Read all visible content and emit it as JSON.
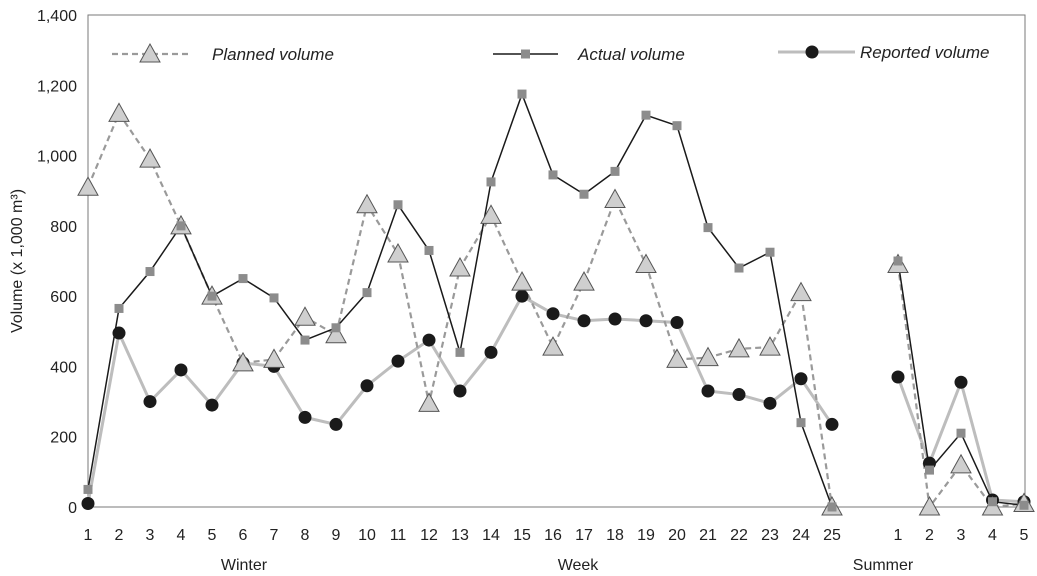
{
  "chart_data": {
    "type": "line",
    "ylabel": "Volume (x 1,000 m³)",
    "ylim": [
      0,
      1400
    ],
    "yticks": [
      "0",
      "200",
      "400",
      "600",
      "800",
      "1,000",
      "1,200",
      "1,400"
    ],
    "grid": false,
    "legend_position": "top",
    "groups": [
      {
        "name": "Winter/Week",
        "label_left": "Winter",
        "label_center": "Week",
        "x": [
          1,
          2,
          3,
          4,
          5,
          6,
          7,
          8,
          9,
          10,
          11,
          12,
          13,
          14,
          15,
          16,
          17,
          18,
          19,
          20,
          21,
          22,
          23,
          24,
          25
        ],
        "x_labels": [
          "1",
          "2",
          "3",
          "4",
          "5",
          "6",
          "7",
          "8",
          "9",
          "10",
          "11",
          "12",
          "13",
          "14",
          "15",
          "16",
          "17",
          "18",
          "19",
          "20",
          "21",
          "22",
          "23",
          "24",
          "25"
        ],
        "series": {
          "planned": [
            910,
            1120,
            990,
            800,
            600,
            410,
            420,
            540,
            490,
            860,
            720,
            295,
            680,
            830,
            640,
            455,
            640,
            875,
            690,
            420,
            425,
            450,
            455,
            610,
            0
          ],
          "actual": [
            50,
            565,
            670,
            800,
            600,
            650,
            595,
            475,
            510,
            610,
            860,
            730,
            440,
            925,
            1175,
            945,
            890,
            955,
            1115,
            1085,
            795,
            680,
            725,
            240,
            0
          ],
          "reported": [
            10,
            495,
            300,
            390,
            290,
            410,
            400,
            255,
            235,
            345,
            415,
            475,
            330,
            440,
            600,
            550,
            530,
            535,
            530,
            525,
            330,
            320,
            295,
            365,
            235
          ]
        }
      },
      {
        "name": "Summer",
        "label_center": "Summer",
        "x": [
          1,
          2,
          3,
          4,
          5
        ],
        "x_labels": [
          "1",
          "2",
          "3",
          "4",
          "5"
        ],
        "series": {
          "planned": [
            690,
            0,
            120,
            0,
            10
          ],
          "actual": [
            700,
            105,
            210,
            15,
            5
          ],
          "reported": [
            370,
            125,
            355,
            20,
            15
          ]
        }
      }
    ],
    "legend": [
      {
        "key": "planned",
        "label": "Planned volume",
        "marker": "triangle",
        "line": "dashed",
        "color": "#9a9a9a",
        "fill": "#cfcfcf"
      },
      {
        "key": "actual",
        "label": "Actual volume",
        "marker": "square",
        "line": "solid",
        "color": "#1a1a1a",
        "fill": "#8c8c8c"
      },
      {
        "key": "reported",
        "label": "Reported volume",
        "marker": "circle",
        "line": "solid",
        "color": "#bdbdbd",
        "fill": "#1a1a1a"
      }
    ]
  }
}
